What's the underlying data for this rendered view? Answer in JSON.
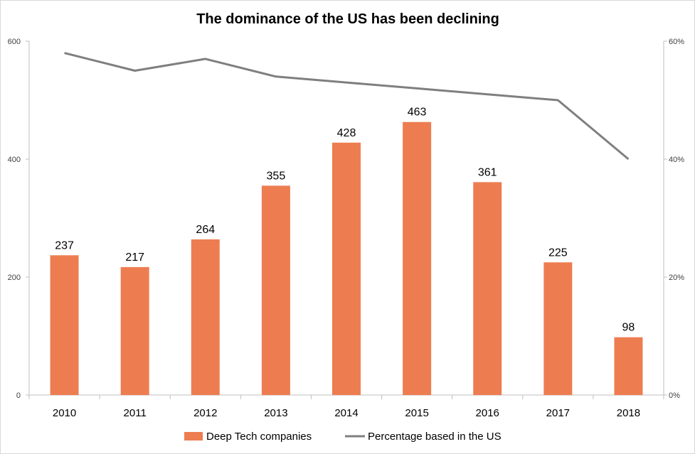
{
  "chart_data": {
    "type": "bar",
    "title": "The dominance of the US has been declining",
    "categories": [
      "2010",
      "2011",
      "2012",
      "2013",
      "2014",
      "2015",
      "2016",
      "2017",
      "2018"
    ],
    "series": [
      {
        "name": "Deep Tech companies",
        "type": "bar",
        "axis": "left",
        "color": "#ed7d51",
        "values": [
          237,
          217,
          264,
          355,
          428,
          463,
          361,
          225,
          98
        ],
        "data_labels": [
          "237",
          "217",
          "264",
          "355",
          "428",
          "463",
          "361",
          "225",
          "98"
        ]
      },
      {
        "name": "Percentage based in the US",
        "type": "line",
        "axis": "right",
        "color": "#7f7f7f",
        "values": [
          58,
          55,
          57,
          54,
          53,
          52,
          51,
          50,
          40
        ]
      }
    ],
    "y_left": {
      "min": 0,
      "max": 600,
      "ticks": [
        0,
        200,
        400,
        600
      ],
      "tick_labels": [
        "0",
        "200",
        "400",
        "600"
      ]
    },
    "y_right": {
      "min": 0,
      "max": 60,
      "ticks": [
        0,
        20,
        40,
        60
      ],
      "tick_labels": [
        "0%",
        "20%",
        "40%",
        "60%"
      ]
    },
    "legend": {
      "position": "bottom",
      "entries": [
        "Deep Tech companies",
        "Percentage based in the US"
      ]
    },
    "grid": false,
    "xlabel": "",
    "ylabel": ""
  }
}
